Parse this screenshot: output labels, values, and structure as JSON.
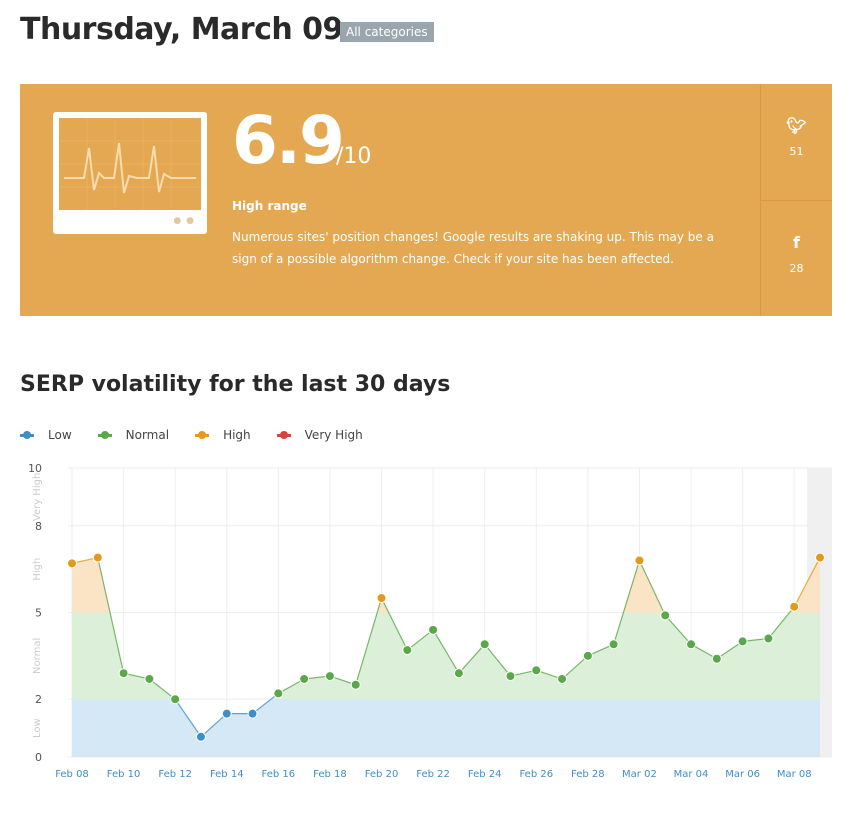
{
  "header": {
    "title": "Thursday, March 09",
    "category_badge": "All categories"
  },
  "score_card": {
    "score": "6.9",
    "out_of": "/10",
    "range_label": "High range",
    "description": "Numerous sites' position changes! Google results are shaking up. This may be a sign of a possible algorithm change. Check if your site has been affected.",
    "background": "#e5a852",
    "twitter": {
      "icon": "twitter-icon",
      "count": "51"
    },
    "facebook": {
      "icon": "facebook-icon",
      "count": "28"
    }
  },
  "chart_title": "SERP volatility for the last 30 days",
  "legend": [
    {
      "label": "Low",
      "color": "#3d8fc6"
    },
    {
      "label": "Normal",
      "color": "#5aa84a"
    },
    {
      "label": "High",
      "color": "#e2991c"
    },
    {
      "label": "Very High",
      "color": "#d9443a"
    }
  ],
  "chart_data": {
    "type": "line",
    "title": "SERP volatility for the last 30 days",
    "xlabel": "",
    "ylabel": "",
    "ylim": [
      0,
      10
    ],
    "yticks": [
      "0",
      "2",
      "5",
      "8",
      "10"
    ],
    "bands": [
      {
        "label": "Low",
        "from": 0,
        "to": 2
      },
      {
        "label": "Normal",
        "from": 2,
        "to": 5
      },
      {
        "label": "High",
        "from": 5,
        "to": 8
      },
      {
        "label": "Very High",
        "from": 8,
        "to": 10
      }
    ],
    "x": [
      "Feb 08",
      "Feb 09",
      "Feb 10",
      "Feb 11",
      "Feb 12",
      "Feb 13",
      "Feb 14",
      "Feb 15",
      "Feb 16",
      "Feb 17",
      "Feb 18",
      "Feb 19",
      "Feb 20",
      "Feb 21",
      "Feb 22",
      "Feb 23",
      "Feb 24",
      "Feb 25",
      "Feb 26",
      "Feb 27",
      "Feb 28",
      "Mar 01",
      "Mar 02",
      "Mar 03",
      "Mar 04",
      "Mar 05",
      "Mar 06",
      "Mar 07",
      "Mar 08",
      "Mar 09"
    ],
    "xtick_labels": [
      "Feb 08",
      "Feb 10",
      "Feb 12",
      "Feb 14",
      "Feb 16",
      "Feb 18",
      "Feb 20",
      "Feb 22",
      "Feb 24",
      "Feb 26",
      "Feb 28",
      "Mar 02",
      "Mar 04",
      "Mar 06",
      "Mar 08"
    ],
    "values": [
      6.7,
      6.9,
      2.9,
      2.7,
      2.0,
      0.7,
      1.5,
      1.5,
      2.2,
      2.7,
      2.8,
      2.5,
      5.5,
      3.7,
      4.4,
      2.9,
      3.9,
      2.8,
      3.0,
      2.7,
      3.5,
      3.9,
      6.8,
      4.9,
      3.9,
      3.4,
      4.0,
      4.1,
      5.2,
      6.9
    ],
    "grid": true,
    "legend_position": "top-left"
  }
}
